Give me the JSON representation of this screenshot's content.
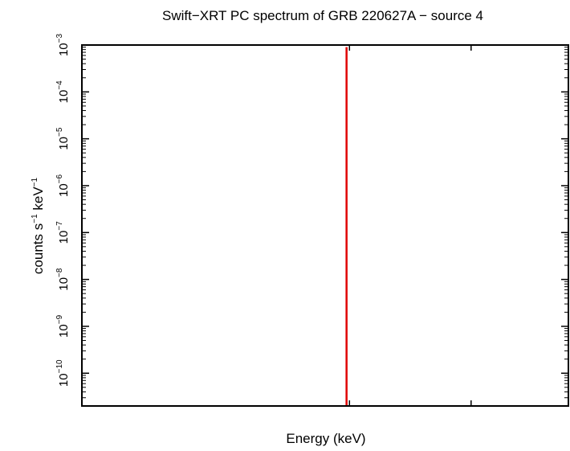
{
  "chart_data": {
    "type": "line",
    "title": "Swift−XRT PC spectrum of GRB 220627A − source 4",
    "xlabel": "Energy (keV)",
    "ylabel": {
      "prefix": "counts s",
      "sup1": "−1",
      "middle": " keV",
      "sup2": "−1"
    },
    "y_scale": "log",
    "ylim": [
      2e-11,
      0.001
    ],
    "x_ticks_labeled": false,
    "y_ticks": [
      {
        "value": 1e-10,
        "base": "10",
        "exp": "−10"
      },
      {
        "value": 1e-09,
        "base": "10",
        "exp": "−9"
      },
      {
        "value": 1e-08,
        "base": "10",
        "exp": "−8"
      },
      {
        "value": 1e-07,
        "base": "10",
        "exp": "−7"
      },
      {
        "value": 1e-06,
        "base": "10",
        "exp": "−6"
      },
      {
        "value": 1e-05,
        "base": "10",
        "exp": "−5"
      },
      {
        "value": 0.0001,
        "base": "10",
        "exp": "−4"
      },
      {
        "value": 0.001,
        "base": "10",
        "exp": "−3"
      }
    ],
    "series": [
      {
        "color": "#e00000",
        "x_fraction": 0.544,
        "y_range": [
          2e-11,
          0.0009
        ]
      }
    ],
    "grid": false,
    "legend": "none",
    "colors": {
      "axis": "#000000",
      "series": "#e00000"
    }
  }
}
